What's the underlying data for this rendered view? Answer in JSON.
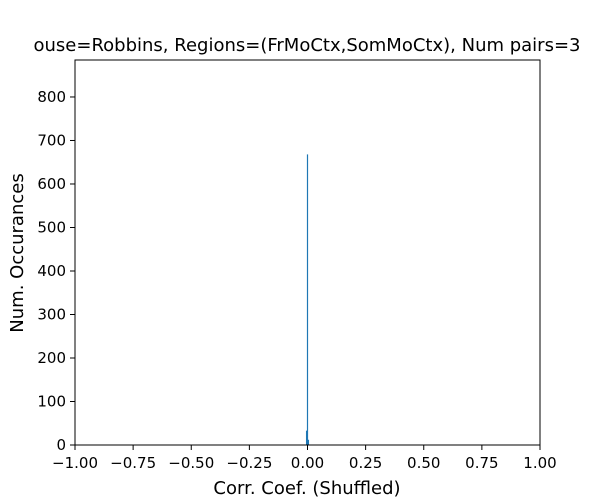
{
  "chart_data": {
    "type": "bar",
    "title": "ouse=Robbins, Regions=(FrMoCtx,SomMoCtx), Num pairs=3",
    "xlabel": "Corr. Coef. (Shuffled)",
    "ylabel": "Num. Occurances",
    "xlim": [
      -1.0,
      1.0
    ],
    "ylim": [
      0,
      885
    ],
    "xticks": [
      "−1.00",
      "−0.75",
      "−0.50",
      "−0.25",
      "0.00",
      "0.25",
      "0.50",
      "0.75",
      "1.00"
    ],
    "yticks": [
      "0",
      "100",
      "200",
      "300",
      "400",
      "500",
      "600",
      "700",
      "800"
    ],
    "bar_color": "#1f77b4",
    "bins": [
      {
        "x": -0.004,
        "count": 33
      },
      {
        "x": 0.0,
        "count": 668
      },
      {
        "x": 0.004,
        "count": 12
      }
    ]
  }
}
